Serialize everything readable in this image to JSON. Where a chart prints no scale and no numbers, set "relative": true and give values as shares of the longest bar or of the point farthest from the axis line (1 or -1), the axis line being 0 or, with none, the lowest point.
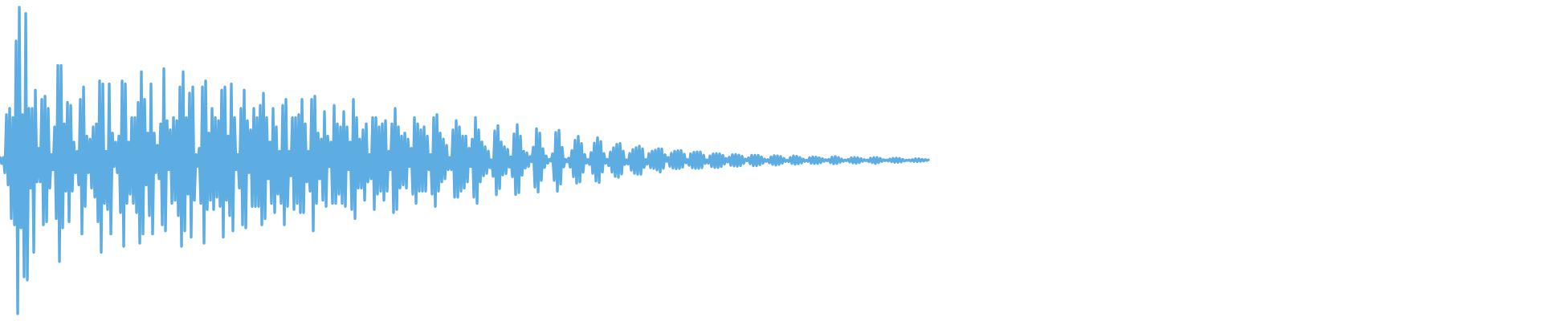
{
  "chart_data": {
    "type": "line",
    "relative": true,
    "categories": [
      null,
      null,
      null,
      null,
      null,
      null,
      null,
      null,
      null,
      null,
      null,
      null,
      null,
      null,
      null,
      null,
      null,
      null,
      null,
      null,
      null,
      null,
      null,
      null,
      null,
      null,
      null,
      null,
      null,
      null,
      null,
      null,
      null,
      null,
      null,
      null,
      null,
      null,
      null,
      null,
      null,
      null,
      null,
      null,
      null,
      null,
      null,
      null,
      null,
      null,
      null,
      null,
      null,
      null,
      null,
      null,
      null,
      null,
      null,
      null,
      null,
      null,
      null,
      null,
      null,
      null,
      null,
      null,
      null,
      null,
      null,
      null,
      null,
      null,
      null,
      null,
      null,
      null,
      null,
      null,
      null,
      null,
      null,
      null,
      null,
      null,
      null,
      null,
      null,
      null,
      null,
      null,
      null,
      null,
      null,
      null,
      null,
      null,
      null,
      null,
      null,
      null,
      null,
      null,
      null,
      null,
      null,
      null,
      null,
      null,
      null,
      null,
      null,
      null,
      null,
      null,
      null,
      null,
      null,
      null,
      null,
      null,
      null,
      null,
      null,
      null,
      null,
      null,
      null,
      null,
      null,
      null,
      null,
      null,
      null,
      null,
      null,
      null,
      null,
      null,
      null,
      null,
      null,
      null,
      null,
      null,
      null,
      null,
      null,
      null,
      null,
      null,
      null,
      null,
      null,
      null,
      null,
      null,
      null,
      null,
      null,
      null,
      null,
      null,
      null,
      null,
      null,
      null,
      null,
      null,
      null,
      null,
      null,
      null,
      null,
      null,
      null,
      null,
      null,
      null,
      null,
      null,
      null,
      null,
      null,
      null,
      null,
      null,
      null,
      null,
      null,
      null,
      null,
      null,
      null,
      null,
      null,
      null,
      null,
      null,
      null,
      null,
      null,
      null,
      null,
      null,
      null,
      null,
      null,
      null,
      null,
      null,
      null,
      null,
      null,
      null,
      null,
      null,
      null,
      null,
      null,
      null,
      null,
      null,
      null,
      null,
      null,
      null,
      null,
      null,
      null,
      null,
      null,
      null,
      null,
      null,
      null,
      null,
      null,
      null,
      null,
      null,
      null,
      null,
      null,
      null,
      null,
      null,
      null,
      null,
      null,
      null,
      null,
      null,
      null,
      null,
      null,
      null,
      null,
      null,
      null,
      null,
      null,
      null,
      null,
      null,
      null,
      null,
      null,
      null,
      null,
      null,
      null,
      null,
      null,
      null,
      null,
      null,
      null,
      null,
      null,
      null,
      null,
      null,
      null,
      null,
      null,
      null,
      null,
      null,
      null,
      null,
      null,
      null,
      null,
      null,
      null,
      null,
      null,
      null,
      null,
      null,
      null,
      null,
      null,
      null,
      null,
      null,
      null,
      null,
      null,
      null,
      null,
      null,
      null,
      null,
      null,
      null,
      null,
      null,
      null,
      null,
      null,
      null,
      null,
      null,
      null,
      null,
      null,
      null,
      null,
      null,
      null,
      null,
      null,
      null,
      null,
      null,
      null,
      null,
      null,
      null,
      null,
      null,
      null,
      null,
      null,
      null,
      null,
      null,
      null,
      null,
      null,
      null,
      null,
      null,
      null,
      null,
      null,
      null,
      null,
      null,
      null,
      null,
      null,
      null,
      null,
      null,
      null,
      null,
      null,
      null,
      null,
      null,
      null,
      null,
      null,
      null,
      null,
      null,
      null,
      null,
      null,
      null,
      null,
      null,
      null,
      null,
      null,
      null,
      null,
      null,
      null,
      null,
      null,
      null,
      null,
      null,
      null,
      null,
      null,
      null,
      null,
      null,
      null,
      null,
      null,
      null,
      null,
      null,
      null,
      null,
      null,
      null,
      null,
      null,
      null,
      null,
      null,
      null,
      null,
      null,
      null,
      null,
      null,
      null,
      null,
      null,
      null,
      null,
      null,
      null,
      null,
      null,
      null,
      null,
      null,
      null,
      null,
      null,
      null,
      null,
      null,
      null,
      null,
      null,
      null,
      null,
      null,
      null,
      null,
      null,
      null,
      null,
      null,
      null,
      null,
      null,
      null,
      null,
      null,
      null,
      null,
      null,
      null,
      null,
      null,
      null,
      null,
      null,
      null,
      null,
      null,
      null,
      null,
      null,
      null,
      null,
      null,
      null,
      null,
      null,
      null,
      null,
      null,
      null,
      null,
      null,
      null,
      null,
      null,
      null,
      null,
      null,
      null,
      null,
      null,
      null,
      null,
      null,
      null,
      null,
      null,
      null,
      null,
      null,
      null,
      null,
      null,
      null,
      null,
      null,
      null,
      null,
      null,
      null,
      null,
      null,
      null,
      null,
      null,
      null,
      null,
      null,
      null,
      null,
      null,
      null,
      null,
      null,
      null,
      null,
      null,
      null,
      null,
      null,
      null,
      null,
      null,
      null,
      null,
      null,
      null,
      null,
      null,
      null,
      null,
      null,
      null,
      null,
      null,
      null,
      null,
      null,
      null,
      null,
      null,
      null,
      null,
      null,
      null,
      null,
      null,
      null,
      null,
      null,
      null,
      null,
      null,
      null,
      null,
      null,
      null,
      null,
      null,
      null,
      null,
      null,
      null,
      null,
      null,
      null,
      null,
      null,
      null,
      null,
      null,
      null,
      null,
      null,
      null,
      null,
      null,
      null,
      null,
      null,
      null,
      null,
      null,
      null,
      null,
      null,
      null,
      null,
      null,
      null,
      null,
      null,
      null,
      null,
      null,
      null,
      null,
      null,
      null,
      null,
      null,
      null,
      null,
      null,
      null,
      null,
      null,
      null,
      null,
      null,
      null,
      null,
      null,
      null,
      null,
      null,
      null,
      null,
      null,
      null,
      null,
      null,
      null,
      null,
      null,
      null,
      null,
      null,
      null,
      null,
      null,
      null,
      null,
      null,
      null,
      null,
      null,
      null,
      null,
      null,
      null,
      null,
      null,
      null,
      null,
      null,
      null,
      null,
      null,
      null,
      null,
      null,
      null,
      null,
      null,
      null,
      null,
      null,
      null,
      null,
      null,
      null,
      null,
      null,
      null,
      null,
      null,
      null,
      null,
      null,
      null,
      null,
      null,
      null,
      null,
      null,
      null,
      null,
      null,
      null,
      null,
      null,
      null,
      null,
      null,
      null,
      null,
      null,
      null,
      null,
      null,
      null,
      null,
      null,
      null,
      null,
      null,
      null,
      null,
      null,
      null,
      null,
      null,
      null,
      null,
      null,
      null,
      null,
      null,
      null,
      null,
      null,
      null,
      null,
      null,
      null,
      null,
      null,
      null,
      null,
      null,
      null,
      null,
      null,
      null,
      null,
      null,
      null,
      null,
      null,
      null,
      null,
      null,
      null,
      null,
      null,
      null,
      null,
      null,
      null,
      null,
      null,
      null,
      null,
      null,
      null,
      null,
      null,
      null,
      null,
      null,
      null,
      null,
      null,
      null,
      null,
      null,
      null,
      null,
      null,
      null,
      null,
      null,
      null,
      null,
      null,
      null,
      null,
      null,
      null,
      null,
      null,
      null,
      null,
      null,
      null,
      null,
      null,
      null,
      null,
      null,
      null,
      null,
      null,
      null,
      null,
      null,
      null,
      null,
      null,
      null,
      null,
      null,
      null,
      null,
      null,
      null,
      null,
      null,
      null,
      null,
      null,
      null,
      null,
      null,
      null,
      null,
      null,
      null,
      null,
      null,
      null,
      null,
      null,
      null,
      null,
      null,
      null,
      null,
      null,
      null,
      null,
      null,
      null,
      null,
      null,
      null,
      null,
      null,
      null,
      null,
      null,
      null,
      null,
      null,
      null,
      null,
      null,
      null,
      null,
      null,
      null,
      null,
      null,
      null,
      null,
      null,
      null,
      null,
      null,
      null,
      null,
      null,
      null,
      null,
      null,
      null,
      null,
      null,
      null,
      null,
      null,
      null,
      null,
      null,
      null,
      null,
      null,
      null,
      null,
      null,
      null,
      null,
      null,
      null,
      null,
      null,
      null,
      null,
      null,
      null,
      null,
      null,
      null,
      null,
      null,
      null,
      null,
      null,
      null,
      null,
      null,
      null,
      null,
      null,
      null,
      null,
      null,
      null,
      null,
      null,
      null,
      null,
      null,
      null,
      null,
      null,
      null,
      null,
      null,
      null,
      null,
      null,
      null,
      null,
      null,
      null,
      null,
      null,
      null,
      null,
      null,
      null,
      null,
      null,
      null,
      null,
      null,
      null,
      null,
      null,
      null,
      null,
      null,
      null,
      null,
      null,
      null,
      null,
      null,
      null,
      null,
      null,
      null
    ],
    "series": [
      {
        "color": "#5dade2",
        "values": [
          0.51,
          0.49,
          0.51,
          0.46,
          0.65,
          0.42,
          0.67,
          0.31,
          0.64,
          0.29,
          0.89,
          0,
          1,
          0.28,
          0.65,
          0.12,
          0.98,
          0.11,
          0.67,
          0.41,
          0.67,
          0.2,
          0.73,
          0.43,
          0.54,
          0.43,
          0.7,
          0.29,
          0.71,
          0.3,
          0.67,
          0.41,
          0.52,
          0.47,
          0.61,
          0.31,
          0.81,
          0.17,
          0.81,
          0.28,
          0.62,
          0.4,
          0.69,
          0.3,
          0.68,
          0.4,
          0.56,
          0.46,
          0.53,
          0.42,
          0.7,
          0.26,
          0.74,
          0.35,
          0.58,
          0.46,
          0.57,
          0.41,
          0.61,
          0.38,
          0.62,
          0.3,
          0.76,
          0.2,
          0.75,
          0.36,
          0.53,
          0.34,
          0.75,
          0.26,
          0.59,
          0.48,
          0.56,
          0.46,
          0.58,
          0.33,
          0.76,
          0.22,
          0.75,
          0.36,
          0.56,
          0.39,
          0.64,
          0.36,
          0.64,
          0.33,
          0.69,
          0.23,
          0.79,
          0.26,
          0.7,
          0.42,
          0.59,
          0.32,
          0.75,
          0.26,
          0.59,
          0.46,
          0.55,
          0.44,
          0.62,
          0.29,
          0.8,
          0.27,
          0.63,
          0.47,
          0.6,
          0.36,
          0.64,
          0.37,
          0.63,
          0.32,
          0.74,
          0.22,
          0.79,
          0.27,
          0.64,
          0.39,
          0.72,
          0.25,
          0.74,
          0.37,
          0.52,
          0.48,
          0.54,
          0.36,
          0.74,
          0.23,
          0.76,
          0.34,
          0.59,
          0.37,
          0.67,
          0.34,
          0.64,
          0.38,
          0.63,
          0.35,
          0.73,
          0.25,
          0.74,
          0.37,
          0.58,
          0.32,
          0.75,
          0.27,
          0.64,
          0.47,
          0.52,
          0.41,
          0.67,
          0.29,
          0.73,
          0.28,
          0.63,
          0.46,
          0.6,
          0.35,
          0.67,
          0.35,
          0.64,
          0.35,
          0.68,
          0.29,
          0.72,
          0.31,
          0.64,
          0.44,
          0.56,
          0.36,
          0.67,
          0.33,
          0.61,
          0.39,
          0.53,
          0.36,
          0.68,
          0.29,
          0.7,
          0.35,
          0.53,
          0.45,
          0.64,
          0.34,
          0.64,
          0.36,
          0.65,
          0.33,
          0.7,
          0.33,
          0.62,
          0.43,
          0.53,
          0.4,
          0.7,
          0.27,
          0.71,
          0.36,
          0.59,
          0.44,
          0.57,
          0.37,
          0.66,
          0.35,
          0.58,
          0.48,
          0.56,
          0.36,
          0.68,
          0.36,
          0.62,
          0.39,
          0.61,
          0.36,
          0.66,
          0.35,
          0.61,
          0.47,
          0.56,
          0.34,
          0.7,
          0.31,
          0.64,
          0.41,
          0.57,
          0.41,
          0.6,
          0.37,
          0.62,
          0.43,
          0.52,
          0.44,
          0.64,
          0.34,
          0.64,
          0.39,
          0.61,
          0.4,
          0.62,
          0.37,
          0.63,
          0.4,
          0.53,
          0.47,
          0.62,
          0.33,
          0.67,
          0.34,
          0.61,
          0.41,
          0.58,
          0.42,
          0.59,
          0.41,
          0.57,
          0.48,
          0.54,
          0.39,
          0.64,
          0.36,
          0.62,
          0.4,
          0.6,
          0.4,
          0.61,
          0.4,
          0.58,
          0.47,
          0.52,
          0.39,
          0.64,
          0.35,
          0.65,
          0.4,
          0.59,
          0.43,
          0.57,
          0.44,
          0.55,
          0.47,
          0.51,
          0.47,
          0.6,
          0.38,
          0.63,
          0.38,
          0.61,
          0.4,
          0.58,
          0.41,
          0.58,
          0.43,
          0.54,
          0.48,
          0.57,
          0.38,
          0.64,
          0.36,
          0.6,
          0.43,
          0.561,
          0.45,
          0.545,
          0.458,
          0.531,
          0.476,
          0.502,
          0.448,
          0.597,
          0.388,
          0.614,
          0.408,
          0.561,
          0.453,
          0.545,
          0.457,
          0.537,
          0.478,
          0.512,
          0.447,
          0.587,
          0.389,
          0.617,
          0.395,
          0.58,
          0.452,
          0.53,
          0.475,
          0.525,
          0.48,
          0.513,
          0.496,
          0.544,
          0.413,
          0.604,
          0.397,
          0.59,
          0.435,
          0.539,
          0.477,
          0.515,
          0.491,
          0.504,
          0.498,
          0.522,
          0.435,
          0.592,
          0.399,
          0.599,
          0.423,
          0.543,
          0.479,
          0.504,
          0.496,
          0.508,
          0.478,
          0.533,
          0.447,
          0.566,
          0.426,
          0.579,
          0.43,
          0.556,
          0.461,
          0.52,
          0.491,
          0.503,
          0.487,
          0.526,
          0.458,
          0.557,
          0.433,
          0.575,
          0.428,
          0.562,
          0.462,
          0.523,
          0.491,
          0.504,
          0.483,
          0.528,
          0.462,
          0.542,
          0.448,
          0.553,
          0.445,
          0.556,
          0.456,
          0.531,
          0.487,
          0.502,
          0.488,
          0.523,
          0.468,
          0.536,
          0.458,
          0.542,
          0.455,
          0.547,
          0.455,
          0.539,
          0.477,
          0.503,
          0.488,
          0.523,
          0.476,
          0.531,
          0.474,
          0.534,
          0.469,
          0.539,
          0.462,
          0.538,
          0.474,
          0.519,
          0.497,
          0.51,
          0.481,
          0.524,
          0.475,
          0.53,
          0.473,
          0.532,
          0.474,
          0.533,
          0.478,
          0.521,
          0.492,
          0.503,
          0.484,
          0.522,
          0.476,
          0.527,
          0.474,
          0.528,
          0.474,
          0.528,
          0.476,
          0.518,
          0.49,
          0.502,
          0.491,
          0.515,
          0.48,
          0.522,
          0.477,
          0.523,
          0.477,
          0.522,
          0.48,
          0.517,
          0.488,
          0.507,
          0.495,
          0.511,
          0.484,
          0.519,
          0.482,
          0.52,
          0.481,
          0.518,
          0.483,
          0.514,
          0.49,
          0.505,
          0.499,
          0.509,
          0.489,
          0.517,
          0.483,
          0.517,
          0.483,
          0.517,
          0.486,
          0.512,
          0.491,
          0.505,
          0.497,
          0.503,
          0.492,
          0.512,
          0.487,
          0.516,
          0.485,
          0.515,
          0.487,
          0.513,
          0.491,
          0.507,
          0.497,
          0.501,
          0.496,
          0.51,
          0.49,
          0.515,
          0.488,
          0.514,
          0.489,
          0.51,
          0.492,
          0.505,
          0.497,
          0.501,
          0.497,
          0.509,
          0.491,
          0.512,
          0.49,
          0.511,
          0.49,
          0.509,
          0.493,
          0.506,
          0.497,
          0.503,
          0.499,
          0.504,
          0.493,
          0.511,
          0.489,
          0.513,
          0.49,
          0.51,
          0.494,
          0.505,
          0.497,
          0.502,
          0.499,
          0.504,
          0.495,
          0.509,
          0.492,
          0.51,
          0.491,
          0.509,
          0.493,
          0.506,
          0.497,
          0.503,
          0.499,
          0.502,
          0.496,
          0.508,
          0.493,
          0.51,
          0.49,
          0.51,
          0.493,
          0.507,
          0.497,
          0.503,
          0.499,
          0.502,
          0.498,
          0.505,
          0.496,
          0.507,
          0.494,
          0.508,
          0.494,
          0.507,
          0.495,
          0.504,
          0.498,
          0.501,
          0.5,
          0.502,
          0.498,
          0.503,
          0.497,
          0.506,
          0.496,
          0.506,
          0.497,
          0.504,
          0.498,
          0.503,
          0.5,
          0.502,
          null,
          null,
          null,
          null,
          null,
          null,
          null,
          null,
          null,
          null,
          null,
          null,
          null,
          null,
          null,
          null,
          null,
          null,
          null,
          null,
          null,
          null,
          null,
          null,
          null,
          null,
          null,
          null,
          null,
          null,
          null,
          null,
          null,
          null,
          null,
          null,
          null,
          null,
          null,
          null,
          null,
          null,
          null,
          null,
          null,
          null,
          null,
          null,
          null,
          null,
          null,
          null,
          null,
          null,
          null,
          null,
          null,
          null,
          null,
          null,
          null,
          null,
          null,
          null,
          null,
          null,
          null,
          null,
          null,
          null,
          null,
          null,
          null,
          null,
          null,
          null,
          null,
          null,
          null,
          null,
          null,
          null,
          null,
          null,
          null,
          null,
          null,
          null,
          null,
          null,
          null,
          null,
          null,
          null,
          null,
          null,
          null,
          null,
          null,
          null,
          null,
          null,
          null,
          null,
          null,
          null,
          null,
          null,
          null,
          null,
          null,
          null,
          null,
          null,
          null,
          null,
          null,
          null,
          null,
          null,
          null,
          null,
          null,
          null,
          null,
          null,
          null,
          null,
          null,
          null,
          null,
          null,
          null,
          null,
          null,
          null,
          null,
          null,
          null,
          null,
          null,
          null,
          null,
          null,
          null,
          null,
          null,
          null,
          null,
          null,
          null,
          null,
          null,
          null,
          null,
          null,
          null,
          null,
          null,
          null,
          null,
          null,
          null,
          null,
          null,
          null,
          null,
          null,
          null,
          null,
          null,
          null,
          null,
          null,
          null,
          null,
          null,
          null,
          null,
          null,
          null,
          null,
          null,
          null,
          null,
          null,
          null,
          null,
          null,
          null,
          null,
          null,
          null,
          null,
          null,
          null,
          null,
          null,
          null,
          null,
          null,
          null,
          null,
          null,
          null,
          null,
          null,
          null,
          null,
          null,
          null,
          null,
          null,
          null,
          null,
          null,
          null,
          null,
          null,
          null,
          null,
          null,
          null,
          null,
          null,
          null,
          null,
          null,
          null,
          null,
          null,
          null,
          null,
          null,
          null,
          null,
          null,
          null,
          null,
          null,
          null,
          null,
          null,
          null,
          null,
          null,
          null,
          null,
          null,
          null,
          null,
          null,
          null,
          null,
          null,
          null,
          null,
          null,
          null,
          null,
          null,
          null,
          null,
          null,
          null,
          null,
          null,
          null,
          null,
          null,
          null,
          null,
          null,
          null,
          null,
          null,
          null,
          null,
          null,
          null,
          null,
          null,
          null,
          null,
          null,
          null,
          null,
          null,
          null,
          null,
          null,
          null,
          null,
          null,
          null,
          null,
          null,
          null,
          null,
          null,
          null,
          null,
          null,
          null,
          null,
          null,
          null,
          null,
          null,
          null,
          null,
          null,
          null,
          null,
          null,
          null,
          null,
          null,
          null,
          null,
          null,
          null,
          null,
          null,
          null,
          null,
          null,
          null,
          null,
          null,
          null,
          null,
          null,
          null,
          null,
          null,
          null,
          null,
          null,
          null,
          null,
          null,
          null,
          null,
          null,
          null,
          null,
          null,
          null,
          null,
          null,
          null,
          null,
          null,
          null,
          null,
          null,
          null,
          null,
          null,
          null,
          null,
          null,
          null,
          null,
          null,
          null,
          null,
          null,
          null,
          null,
          null,
          null,
          null,
          null,
          null,
          null,
          null,
          null,
          null,
          null
        ]
      }
    ]
  }
}
